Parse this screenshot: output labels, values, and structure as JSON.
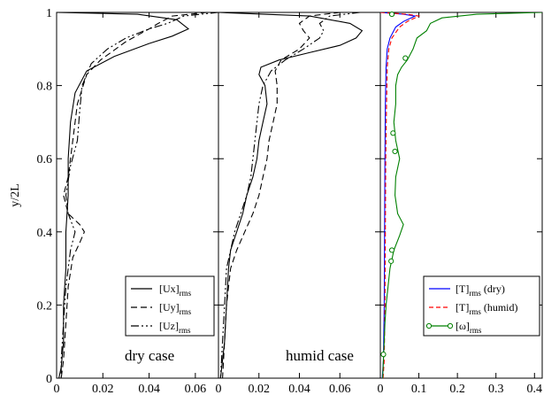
{
  "chart_data": [
    {
      "type": "line",
      "panel": "left",
      "annotation": "dry case",
      "ylabel": "y/2L",
      "xlim": [
        0,
        0.07
      ],
      "ylim": [
        0,
        1
      ],
      "x_ticks": [
        "0",
        "0.02",
        "0.04",
        "0.06"
      ],
      "y_ticks": [
        "0",
        "0.2",
        "0.4",
        "0.6",
        "0.8",
        "1"
      ],
      "legend_position": "bottom-right",
      "grid": false,
      "series": [
        {
          "name": "[Ux]",
          "subscript": "rms",
          "dash": "",
          "color": "#000000",
          "points": [
            [
              0.0,
              1.0
            ],
            [
              0.035,
              0.995
            ],
            [
              0.052,
              0.98
            ],
            [
              0.057,
              0.955
            ],
            [
              0.05,
              0.935
            ],
            [
              0.04,
              0.915
            ],
            [
              0.025,
              0.88
            ],
            [
              0.013,
              0.84
            ],
            [
              0.008,
              0.78
            ],
            [
              0.006,
              0.7
            ],
            [
              0.005,
              0.6
            ],
            [
              0.005,
              0.5
            ],
            [
              0.004,
              0.4
            ],
            [
              0.004,
              0.3
            ],
            [
              0.003,
              0.2
            ],
            [
              0.003,
              0.1
            ],
            [
              0.002,
              0.03
            ],
            [
              0.001,
              0.0
            ]
          ]
        },
        {
          "name": "[Uy]",
          "subscript": "rms",
          "dash": "7,4",
          "color": "#000000",
          "points": [
            [
              0.065,
              1.0
            ],
            [
              0.05,
              0.99
            ],
            [
              0.044,
              0.97
            ],
            [
              0.04,
              0.955
            ],
            [
              0.03,
              0.92
            ],
            [
              0.019,
              0.87
            ],
            [
              0.013,
              0.83
            ],
            [
              0.009,
              0.75
            ],
            [
              0.007,
              0.65
            ],
            [
              0.005,
              0.55
            ],
            [
              0.003,
              0.5
            ],
            [
              0.005,
              0.45
            ],
            [
              0.01,
              0.42
            ],
            [
              0.012,
              0.4
            ],
            [
              0.01,
              0.37
            ],
            [
              0.007,
              0.33
            ],
            [
              0.005,
              0.25
            ],
            [
              0.004,
              0.15
            ],
            [
              0.003,
              0.05
            ],
            [
              0.002,
              0.0
            ]
          ]
        },
        {
          "name": "[Uz]",
          "subscript": "rms",
          "dash": "9,3,2,3,2,3",
          "color": "#000000",
          "points": [
            [
              0.07,
              1.0
            ],
            [
              0.055,
              0.99
            ],
            [
              0.048,
              0.97
            ],
            [
              0.04,
              0.955
            ],
            [
              0.03,
              0.93
            ],
            [
              0.022,
              0.9
            ],
            [
              0.015,
              0.86
            ],
            [
              0.011,
              0.8
            ],
            [
              0.01,
              0.73
            ],
            [
              0.009,
              0.65
            ],
            [
              0.006,
              0.58
            ],
            [
              0.004,
              0.5
            ],
            [
              0.005,
              0.45
            ],
            [
              0.008,
              0.4
            ],
            [
              0.006,
              0.35
            ],
            [
              0.004,
              0.25
            ],
            [
              0.003,
              0.15
            ],
            [
              0.002,
              0.05
            ],
            [
              0.002,
              0.0
            ]
          ]
        }
      ]
    },
    {
      "type": "line",
      "panel": "middle",
      "annotation": "humid case",
      "xlim": [
        0,
        0.08
      ],
      "ylim": [
        0,
        1
      ],
      "x_ticks": [
        "0",
        "0.02",
        "0.04",
        "0.06"
      ],
      "grid": false,
      "series": [
        {
          "name": "[Ux]",
          "subscript": "rms",
          "dash": "",
          "color": "#000000",
          "points": [
            [
              0.0,
              1.0
            ],
            [
              0.045,
              0.99
            ],
            [
              0.065,
              0.97
            ],
            [
              0.071,
              0.95
            ],
            [
              0.068,
              0.93
            ],
            [
              0.06,
              0.91
            ],
            [
              0.045,
              0.89
            ],
            [
              0.03,
              0.87
            ],
            [
              0.021,
              0.85
            ],
            [
              0.02,
              0.83
            ],
            [
              0.023,
              0.8
            ],
            [
              0.024,
              0.75
            ],
            [
              0.022,
              0.7
            ],
            [
              0.02,
              0.65
            ],
            [
              0.019,
              0.6
            ],
            [
              0.017,
              0.55
            ],
            [
              0.014,
              0.5
            ],
            [
              0.012,
              0.45
            ],
            [
              0.009,
              0.4
            ],
            [
              0.006,
              0.35
            ],
            [
              0.005,
              0.3
            ],
            [
              0.004,
              0.2
            ],
            [
              0.003,
              0.1
            ],
            [
              0.002,
              0.05
            ],
            [
              0.001,
              0.0
            ]
          ]
        },
        {
          "name": "[Uy]",
          "subscript": "rms",
          "dash": "7,4",
          "color": "#000000",
          "points": [
            [
              0.06,
              1.0
            ],
            [
              0.045,
              0.99
            ],
            [
              0.04,
              0.97
            ],
            [
              0.042,
              0.95
            ],
            [
              0.045,
              0.93
            ],
            [
              0.04,
              0.9
            ],
            [
              0.031,
              0.87
            ],
            [
              0.028,
              0.84
            ],
            [
              0.029,
              0.8
            ],
            [
              0.029,
              0.75
            ],
            [
              0.027,
              0.7
            ],
            [
              0.025,
              0.65
            ],
            [
              0.024,
              0.6
            ],
            [
              0.022,
              0.55
            ],
            [
              0.02,
              0.5
            ],
            [
              0.017,
              0.45
            ],
            [
              0.013,
              0.4
            ],
            [
              0.009,
              0.35
            ],
            [
              0.006,
              0.3
            ],
            [
              0.004,
              0.2
            ],
            [
              0.003,
              0.1
            ],
            [
              0.002,
              0.0
            ]
          ]
        },
        {
          "name": "[Uz]",
          "subscript": "rms",
          "dash": "9,3,2,3,2,3",
          "color": "#000000",
          "points": [
            [
              0.07,
              1.0
            ],
            [
              0.055,
              0.99
            ],
            [
              0.05,
              0.97
            ],
            [
              0.052,
              0.95
            ],
            [
              0.05,
              0.93
            ],
            [
              0.042,
              0.9
            ],
            [
              0.033,
              0.87
            ],
            [
              0.026,
              0.84
            ],
            [
              0.022,
              0.8
            ],
            [
              0.02,
              0.75
            ],
            [
              0.019,
              0.7
            ],
            [
              0.018,
              0.65
            ],
            [
              0.017,
              0.6
            ],
            [
              0.016,
              0.55
            ],
            [
              0.014,
              0.5
            ],
            [
              0.011,
              0.45
            ],
            [
              0.008,
              0.4
            ],
            [
              0.006,
              0.35
            ],
            [
              0.004,
              0.3
            ],
            [
              0.003,
              0.2
            ],
            [
              0.002,
              0.1
            ],
            [
              0.001,
              0.0
            ]
          ]
        }
      ]
    },
    {
      "type": "line",
      "panel": "right",
      "xlim": [
        0,
        0.42
      ],
      "ylim": [
        0,
        1
      ],
      "x_ticks": [
        "0",
        "0.1",
        "0.2",
        "0.3",
        "0.4"
      ],
      "legend_position": "bottom-right",
      "grid": false,
      "series": [
        {
          "name": "[T]",
          "subscript": "rms",
          "suffix": " (dry)",
          "dash": "",
          "color": "#0000ff",
          "points": [
            [
              0.0,
              1.0
            ],
            [
              0.06,
              0.995
            ],
            [
              0.09,
              0.99
            ],
            [
              0.06,
              0.975
            ],
            [
              0.04,
              0.96
            ],
            [
              0.025,
              0.93
            ],
            [
              0.018,
              0.9
            ],
            [
              0.015,
              0.85
            ],
            [
              0.013,
              0.75
            ],
            [
              0.012,
              0.6
            ],
            [
              0.011,
              0.4
            ],
            [
              0.01,
              0.2
            ],
            [
              0.008,
              0.05
            ],
            [
              0.005,
              0.0
            ]
          ]
        },
        {
          "name": "[T]",
          "subscript": "rms",
          "suffix": " (humid)",
          "dash": "5,3",
          "color": "#ff0000",
          "points": [
            [
              0.0,
              1.0
            ],
            [
              0.07,
              0.995
            ],
            [
              0.1,
              0.99
            ],
            [
              0.07,
              0.975
            ],
            [
              0.05,
              0.96
            ],
            [
              0.03,
              0.93
            ],
            [
              0.022,
              0.9
            ],
            [
              0.018,
              0.85
            ],
            [
              0.016,
              0.75
            ],
            [
              0.014,
              0.6
            ],
            [
              0.013,
              0.4
            ],
            [
              0.012,
              0.2
            ],
            [
              0.01,
              0.05
            ],
            [
              0.007,
              0.0
            ]
          ]
        },
        {
          "name": "[ω]",
          "subscript": "rms",
          "dash": "",
          "color": "#008000",
          "marker": "circle",
          "points": [
            [
              0.42,
              1.0
            ],
            [
              0.25,
              0.995
            ],
            [
              0.16,
              0.985
            ],
            [
              0.13,
              0.97
            ],
            [
              0.12,
              0.95
            ],
            [
              0.095,
              0.93
            ],
            [
              0.085,
              0.9
            ],
            [
              0.07,
              0.87
            ],
            [
              0.055,
              0.85
            ],
            [
              0.045,
              0.83
            ],
            [
              0.04,
              0.8
            ],
            [
              0.04,
              0.75
            ],
            [
              0.035,
              0.7
            ],
            [
              0.04,
              0.65
            ],
            [
              0.05,
              0.6
            ],
            [
              0.04,
              0.55
            ],
            [
              0.038,
              0.5
            ],
            [
              0.045,
              0.45
            ],
            [
              0.06,
              0.42
            ],
            [
              0.05,
              0.39
            ],
            [
              0.035,
              0.35
            ],
            [
              0.025,
              0.3
            ],
            [
              0.02,
              0.25
            ],
            [
              0.015,
              0.2
            ],
            [
              0.012,
              0.15
            ],
            [
              0.01,
              0.1
            ],
            [
              0.008,
              0.05
            ],
            [
              0.006,
              0.0
            ]
          ],
          "marker_points": [
            [
              0.03,
              0.995
            ],
            [
              0.065,
              0.875
            ],
            [
              0.033,
              0.67
            ],
            [
              0.038,
              0.62
            ],
            [
              0.03,
              0.35
            ],
            [
              0.028,
              0.32
            ],
            [
              0.008,
              0.065
            ]
          ]
        }
      ]
    }
  ]
}
